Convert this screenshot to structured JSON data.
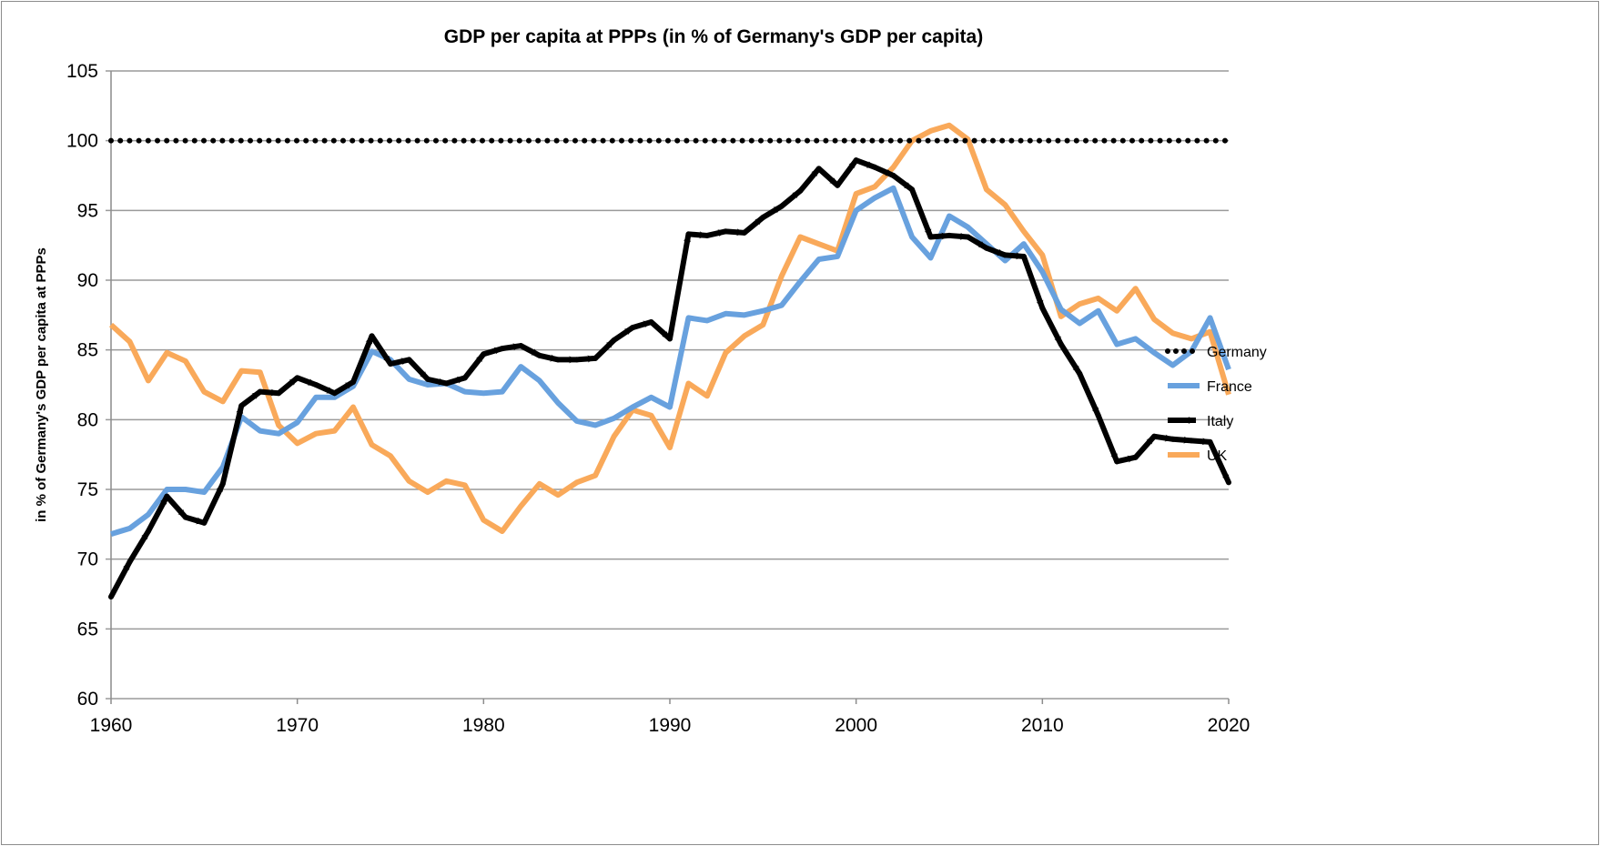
{
  "chart_data": {
    "type": "line",
    "title": "GDP per capita at PPPs (in % of Germany's GDP per capita)",
    "xlabel": "",
    "ylabel": "in % of Germany's GDP per capita at PPPs",
    "xlim": [
      1960,
      2020
    ],
    "ylim": [
      60,
      105
    ],
    "x_ticks": [
      "1960",
      "1970",
      "1980",
      "1990",
      "2000",
      "2010",
      "2020"
    ],
    "y_ticks": [
      "60",
      "65",
      "70",
      "75",
      "80",
      "85",
      "90",
      "95",
      "100",
      "105"
    ],
    "grid": "horizontal",
    "legend_position": "right",
    "x_start": 1960,
    "series": [
      {
        "name": "Germany",
        "color": "#000000",
        "style": "dotted",
        "values": [
          100,
          100,
          100,
          100,
          100,
          100,
          100,
          100,
          100,
          100,
          100,
          100,
          100,
          100,
          100,
          100,
          100,
          100,
          100,
          100,
          100,
          100,
          100,
          100,
          100,
          100,
          100,
          100,
          100,
          100,
          100,
          100,
          100,
          100,
          100,
          100,
          100,
          100,
          100,
          100,
          100,
          100,
          100,
          100,
          100,
          100,
          100,
          100,
          100,
          100,
          100,
          100,
          100,
          100,
          100,
          100,
          100,
          100,
          100,
          100,
          100
        ]
      },
      {
        "name": "France",
        "color": "#68a1de",
        "style": "solid",
        "values": [
          71.8,
          72.2,
          73.2,
          75.0,
          75.0,
          74.8,
          76.6,
          80.2,
          79.2,
          79.0,
          79.8,
          81.6,
          81.6,
          82.4,
          84.9,
          84.3,
          82.9,
          82.5,
          82.6,
          82.0,
          81.9,
          82.0,
          83.8,
          82.8,
          81.2,
          79.9,
          79.6,
          80.1,
          80.9,
          81.6,
          80.9,
          87.3,
          87.1,
          87.6,
          87.5,
          87.8,
          88.2,
          89.9,
          91.5,
          91.7,
          95.0,
          95.9,
          96.6,
          93.1,
          91.6,
          94.6,
          93.8,
          92.6,
          91.4,
          92.6,
          90.6,
          87.9,
          86.9,
          87.8,
          85.4,
          85.8,
          84.8,
          83.9,
          84.9,
          87.3,
          83.6
        ]
      },
      {
        "name": "Italy",
        "color": "#000000",
        "style": "arrows",
        "values": [
          67.3,
          69.8,
          72.0,
          74.5,
          73.0,
          72.6,
          75.4,
          81.0,
          82.0,
          81.9,
          83.0,
          82.5,
          81.9,
          82.7,
          86.0,
          84.0,
          84.3,
          82.9,
          82.6,
          83.0,
          84.7,
          85.1,
          85.3,
          84.6,
          84.3,
          84.3,
          84.4,
          85.7,
          86.6,
          87.0,
          85.8,
          93.3,
          93.2,
          93.5,
          93.4,
          94.5,
          95.3,
          96.4,
          98.0,
          96.8,
          98.6,
          98.1,
          97.5,
          96.5,
          93.1,
          93.2,
          93.1,
          92.3,
          91.8,
          91.7,
          88.0,
          85.4,
          83.3,
          80.3,
          77.0,
          77.3,
          78.8,
          78.6,
          78.5,
          78.4,
          75.5
        ]
      },
      {
        "name": "UK",
        "color": "#f9a95a",
        "style": "solid",
        "values": [
          86.8,
          85.6,
          82.8,
          84.8,
          84.2,
          82.0,
          81.3,
          83.5,
          83.4,
          79.6,
          78.3,
          79.0,
          79.2,
          80.9,
          78.2,
          77.4,
          75.6,
          74.8,
          75.6,
          75.3,
          72.8,
          72.0,
          73.8,
          75.4,
          74.6,
          75.5,
          76.0,
          78.8,
          80.7,
          80.3,
          78.0,
          82.6,
          81.7,
          84.8,
          86.0,
          86.8,
          90.3,
          93.1,
          92.6,
          92.1,
          96.2,
          96.7,
          98.1,
          100.0,
          100.7,
          101.1,
          100.1,
          96.5,
          95.4,
          93.5,
          91.8,
          87.4,
          88.3,
          88.7,
          87.8,
          89.4,
          87.2,
          86.2,
          85.8,
          86.3,
          81.8
        ]
      }
    ]
  }
}
